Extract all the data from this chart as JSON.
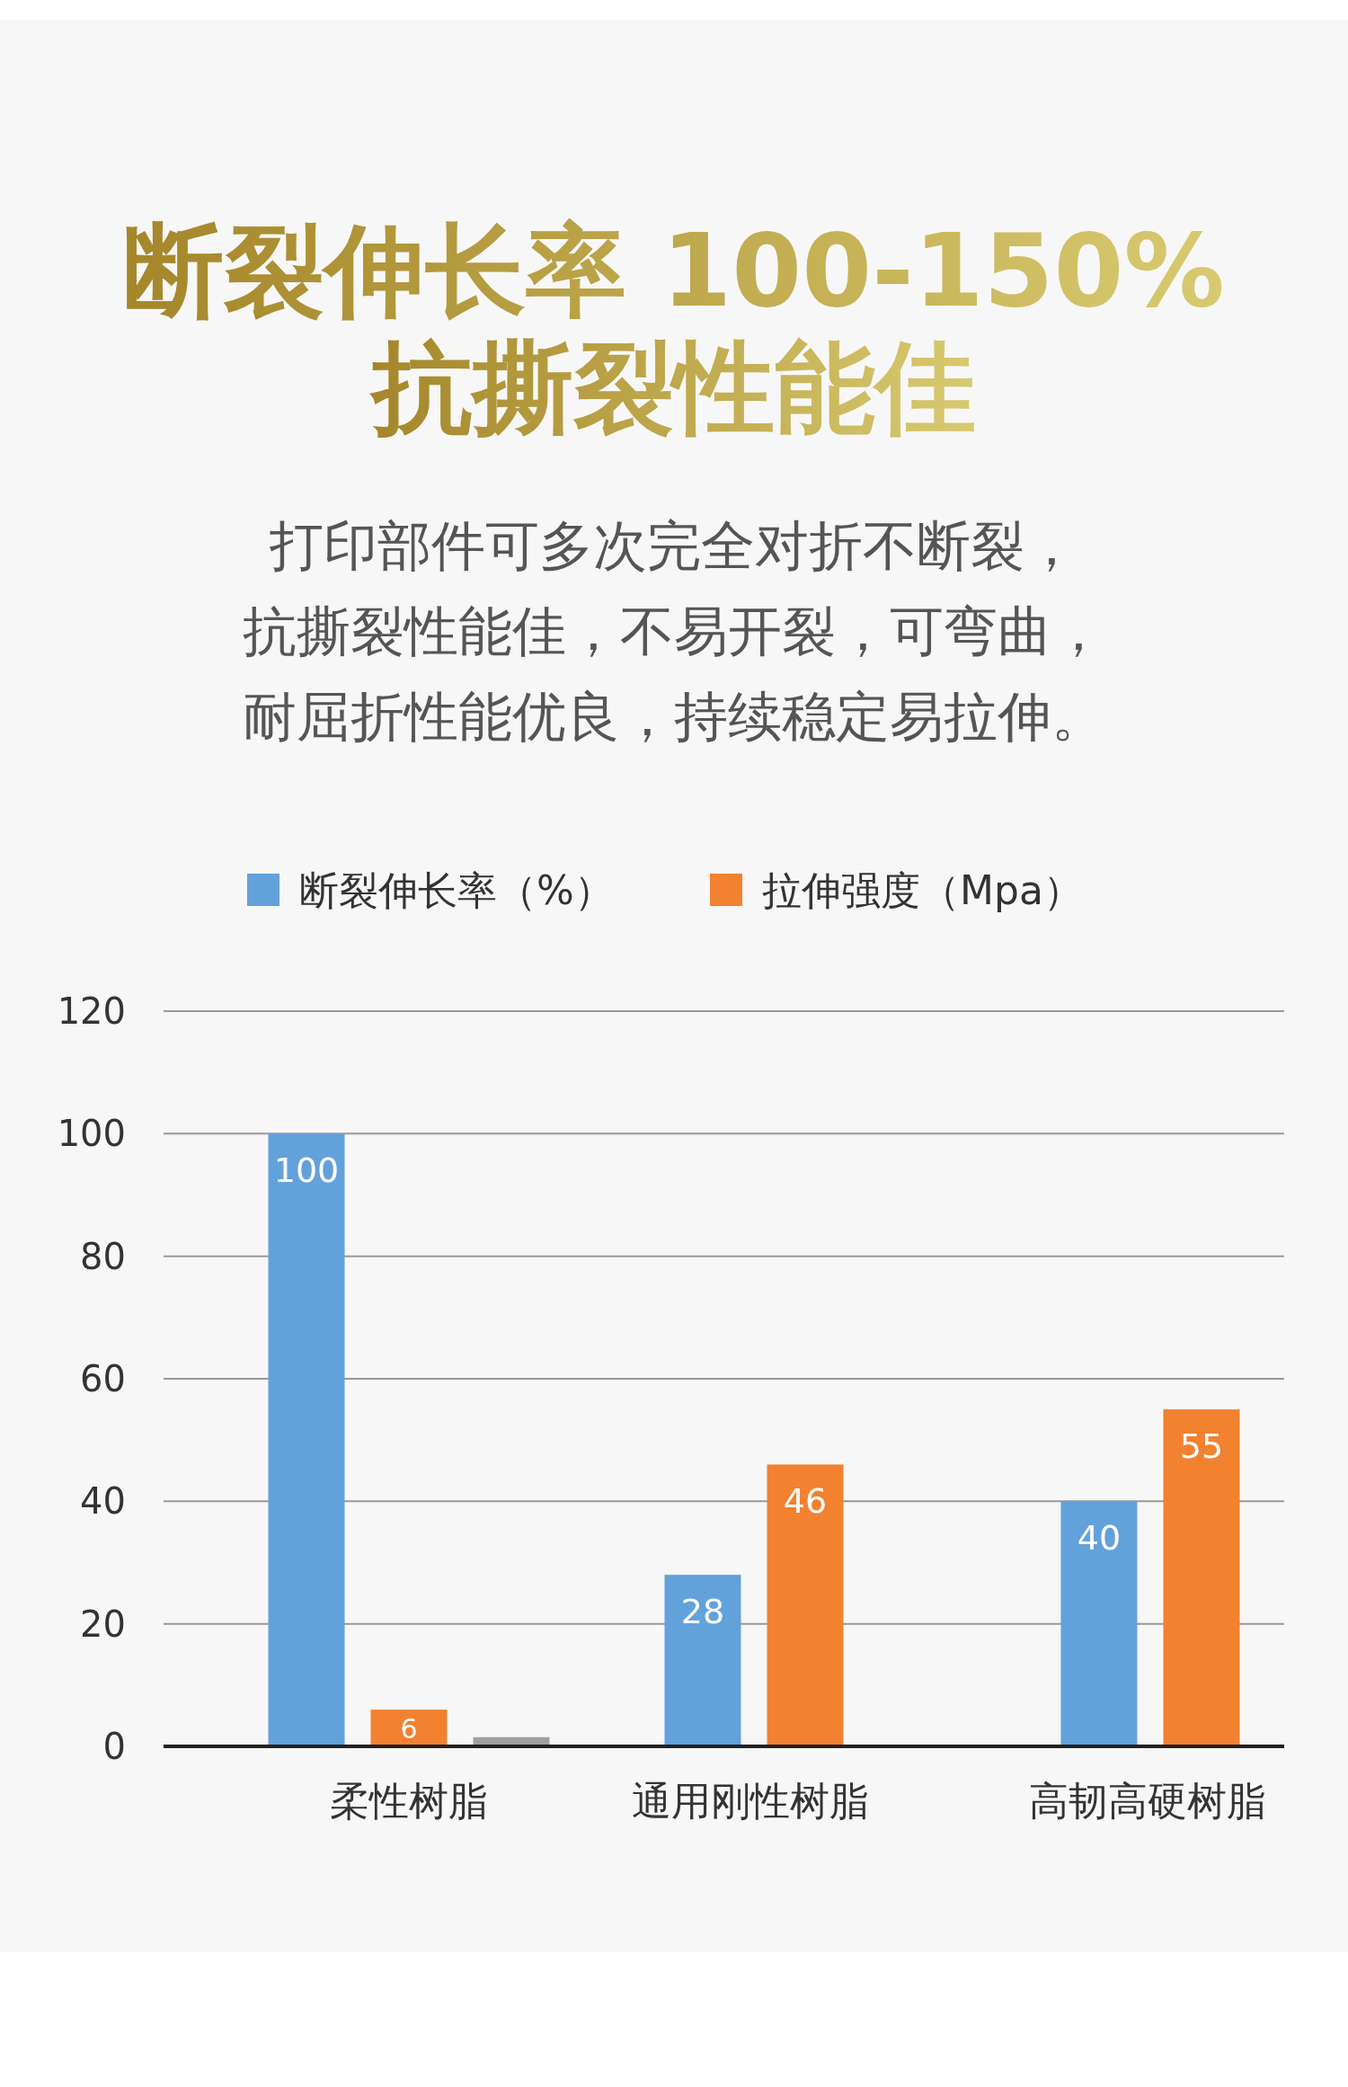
{
  "chart_data": {
    "type": "bar",
    "title": "断裂伸长率 100-150%\n抗撕裂性能佳",
    "subtitle": "打印部件可多次完全对折不断裂，抗撕裂性能佳，不易开裂，可弯曲，耐屈折性能优良，持续稳定易拉伸。",
    "categories": [
      "柔性树脂",
      "通用刚性树脂",
      "高韧高硬树脂"
    ],
    "series": [
      {
        "name": "断裂伸长率（%）",
        "color": "#63a1db",
        "values": [
          100,
          28,
          40
        ],
        "value_labels": [
          "100",
          "28",
          "40"
        ]
      },
      {
        "name": "拉伸强度（Mpa）",
        "color": "#f28130",
        "values": [
          6,
          46,
          55
        ],
        "value_labels": [
          "6",
          "46",
          "55"
        ]
      },
      {
        "color": "#a0a0a0",
        "values": [
          1.5,
          null,
          null
        ]
      }
    ],
    "ylim": [
      0,
      120
    ],
    "yticks": [
      0,
      20,
      40,
      60,
      80,
      100,
      120
    ],
    "grid": "y",
    "legend": "top"
  }
}
